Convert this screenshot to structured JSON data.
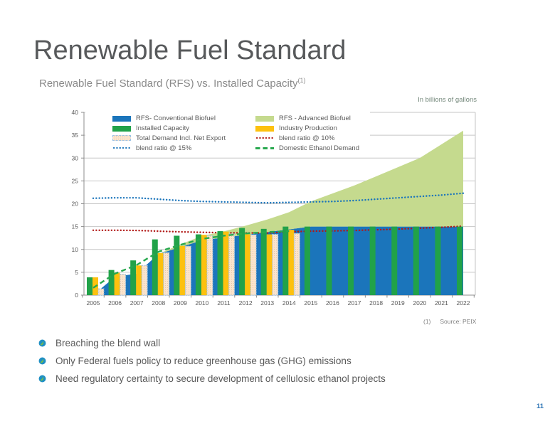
{
  "slide": {
    "title": "Renewable Fuel Standard",
    "page_number": "11"
  },
  "chart": {
    "title": "Renewable Fuel Standard (RFS) vs. Installed Capacity",
    "title_superscript": "(1)",
    "units_label": "In billions of gallons",
    "legend": {
      "left": [
        "RFS- Conventional Biofuel",
        "Installed Capacity",
        "Total Demand Incl. Net Export",
        "blend ratio @ 15%"
      ],
      "right": [
        "RFS - Advanced Biofuel",
        "Industry Production",
        "blend ratio @ 10%",
        "Domestic Ethanol Demand"
      ]
    }
  },
  "chart_data": {
    "type": "combo: stacked area + grouped bars + dotted/dashed lines",
    "x": [
      2005,
      2006,
      2007,
      2008,
      2009,
      2010,
      2011,
      2012,
      2013,
      2014,
      2015,
      2016,
      2017,
      2018,
      2019,
      2020,
      2021,
      2022
    ],
    "ylim": [
      0,
      40
    ],
    "ytick_step": 5,
    "grid": true,
    "legend_position": "top-left, two columns, white box over plot",
    "series": [
      {
        "role": "conv",
        "name": "RFS- Conventional Biofuel",
        "type": "area",
        "color": "#1b75bb",
        "values": [
          0,
          4.0,
          4.7,
          9.0,
          10.5,
          12.0,
          12.6,
          13.2,
          13.8,
          14.4,
          15.0,
          15.0,
          15.0,
          15.0,
          15.0,
          15.0,
          15.0,
          15.0
        ]
      },
      {
        "role": "adv",
        "name": "RFS - Advanced Biofuel",
        "type": "area-stacked-on-conv",
        "color": "#c5da8e",
        "values": [
          0,
          0,
          0,
          0,
          0.6,
          0.95,
          1.35,
          2.0,
          2.75,
          3.75,
          5.5,
          7.25,
          9.0,
          11.0,
          13.0,
          15.0,
          18.0,
          21.0
        ]
      },
      {
        "role": "cap",
        "name": "Installed Capacity",
        "type": "bar",
        "color": "#21a249",
        "values": [
          3.9,
          5.5,
          7.6,
          12.2,
          13.0,
          13.3,
          14.0,
          14.7,
          14.5,
          15.0,
          15.0,
          15.0,
          15.0,
          15.0,
          15.0,
          15.0,
          15.0,
          15.0
        ]
      },
      {
        "role": "prod",
        "name": "Industry Production",
        "type": "bar",
        "color": "#fdc10e",
        "values": [
          3.9,
          4.9,
          6.5,
          9.2,
          10.75,
          13.2,
          13.9,
          13.3,
          13.3,
          14.3,
          null,
          null,
          null,
          null,
          null,
          null,
          null,
          null
        ]
      },
      {
        "role": "dem",
        "name": "Total Demand Incl. Net Export",
        "type": "bar-pattern",
        "color": "#fbe4cd",
        "border_color": "#9dc3e6",
        "values": [
          1.4,
          4.6,
          6.5,
          9.3,
          10.7,
          13.0,
          13.4,
          13.2,
          13.3,
          13.5,
          null,
          null,
          null,
          null,
          null,
          null,
          null,
          null
        ]
      },
      {
        "role": "b15",
        "name": "blend ratio @ 15%",
        "type": "dotted-line",
        "color": "#1b75bb",
        "values": [
          21.2,
          21.3,
          21.3,
          21.0,
          20.7,
          20.5,
          20.4,
          20.3,
          20.2,
          20.3,
          20.4,
          20.5,
          20.7,
          21.0,
          21.3,
          21.6,
          21.9,
          22.3
        ]
      },
      {
        "role": "b10",
        "name": "blend ratio @ 10%",
        "type": "dotted-line",
        "color": "#b11917",
        "values": [
          14.2,
          14.2,
          14.15,
          14.0,
          13.85,
          13.75,
          13.65,
          13.6,
          13.6,
          13.85,
          14.0,
          14.05,
          14.15,
          14.3,
          14.45,
          14.65,
          14.85,
          15.1
        ]
      },
      {
        "role": "dom",
        "name": "Domestic Ethanol Demand",
        "type": "dashed-line",
        "color": "#27a84e",
        "values": [
          1.6,
          4.7,
          6.6,
          9.5,
          11.0,
          12.3,
          13.0,
          13.5,
          13.8,
          14.0,
          null,
          null,
          null,
          null,
          null,
          null,
          null,
          null
        ]
      }
    ]
  },
  "footnote": {
    "marker": "(1)",
    "text": "Source: PEIX"
  },
  "bullets": [
    "Breaching the blend wall",
    "Only Federal fuels policy to reduce greenhouse gas (GHG) emissions",
    "Need regulatory certainty to secure development of cellulosic ethanol projects"
  ]
}
